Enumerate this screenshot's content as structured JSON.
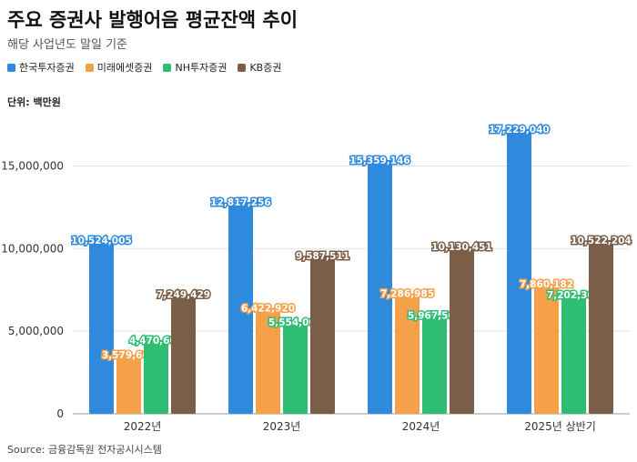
{
  "title": "주요 증권사 발행어음 평균잔액 추이",
  "subtitle": "해당 사업년도 말일 기준",
  "unit_label": "단위: 백만원",
  "source": "Source: 금융감독원 전자공시시스템",
  "chart_data": {
    "type": "bar",
    "title": "주요 증권사 발행어음 평균잔액 추이",
    "subtitle": "해당 사업년도 말일 기준",
    "categories": [
      "2022년",
      "2023년",
      "2024년",
      "2025년 상반기"
    ],
    "series": [
      {
        "name": "한국투자증권",
        "color": "#2f89dc",
        "values": [
          10524005,
          12817256,
          15359146,
          17229040
        ],
        "labels": [
          "10,524,005",
          "12,817,256",
          "15,359,146",
          "17,229,040"
        ]
      },
      {
        "name": "미래에셋증권",
        "color": "#f7a04a",
        "values": [
          3579662,
          6422920,
          7286985,
          7860182
        ],
        "labels": [
          "3,579,662",
          "6,422,920",
          "7,286,985",
          "7,860,182"
        ]
      },
      {
        "name": "NH투자증권",
        "color": "#2fbd74",
        "values": [
          4470600,
          5554000,
          5967500,
          7202300
        ],
        "labels": [
          "4,470,600",
          "5,554,000",
          "5,967,500",
          "7,202,300"
        ]
      },
      {
        "name": "KB증권",
        "color": "#7b5e48",
        "values": [
          7249429,
          9587511,
          10130451,
          10522204
        ],
        "labels": [
          "7,249,429",
          "9,587,511",
          "10,130,451",
          "10,522,204"
        ]
      }
    ],
    "ylim": [
      0,
      18000000
    ],
    "yticks": [
      0,
      5000000,
      10000000,
      15000000
    ],
    "ytick_labels": [
      "0",
      "5,000,000",
      "10,000,000",
      "15,000,000"
    ],
    "grid": true,
    "legend": "top-left"
  }
}
